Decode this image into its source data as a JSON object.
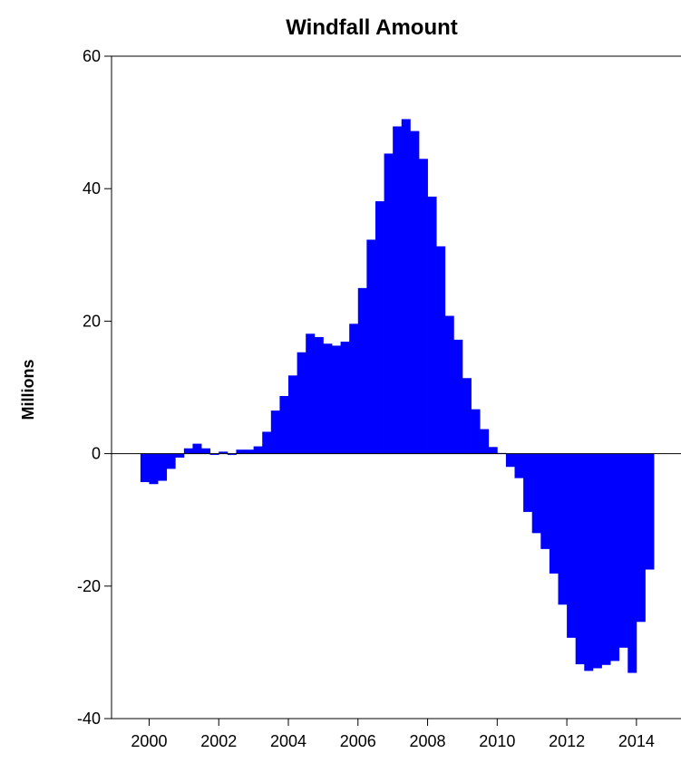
{
  "chart_data": {
    "type": "bar",
    "title": "Windfall Amount",
    "y_label": "Millions",
    "x": [
      1999.875,
      2000.125,
      2000.375,
      2000.625,
      2000.875,
      2001.125,
      2001.375,
      2001.625,
      2001.875,
      2002.125,
      2002.375,
      2002.625,
      2002.875,
      2003.125,
      2003.375,
      2003.625,
      2003.875,
      2004.125,
      2004.375,
      2004.625,
      2004.875,
      2005.125,
      2005.375,
      2005.625,
      2005.875,
      2006.125,
      2006.375,
      2006.625,
      2006.875,
      2007.125,
      2007.375,
      2007.625,
      2007.875,
      2008.125,
      2008.375,
      2008.625,
      2008.875,
      2009.125,
      2009.375,
      2009.625,
      2009.875,
      2010.125,
      2010.375,
      2010.625,
      2010.875,
      2011.125,
      2011.375,
      2011.625,
      2011.875,
      2012.125,
      2012.375,
      2012.625,
      2012.875,
      2013.125,
      2013.375,
      2013.625,
      2013.875,
      2014.125,
      2014.375
    ],
    "values": [
      -4.3,
      -4.6,
      -4.1,
      -2.3,
      -0.6,
      0.8,
      1.5,
      0.8,
      -0.2,
      0.3,
      -0.2,
      0.6,
      0.6,
      1.1,
      3.3,
      6.5,
      8.7,
      11.8,
      15.3,
      18.1,
      17.6,
      16.6,
      16.3,
      16.9,
      19.6,
      25.0,
      32.3,
      38.1,
      45.3,
      49.4,
      50.5,
      48.7,
      44.5,
      38.8,
      31.3,
      20.8,
      17.2,
      11.4,
      6.7,
      3.7,
      1.0,
      0.1,
      -2.0,
      -3.7,
      -8.8,
      -12.0,
      -14.4,
      -18.1,
      -22.8,
      -27.8,
      -31.8,
      -32.8,
      -32.4,
      -31.9,
      -31.3,
      -29.3,
      -33.1,
      -25.4,
      -17.5
    ],
    "color": "#0000ff",
    "xlim": [
      1998.92,
      2015.28
    ],
    "xticks": [
      2000,
      2002,
      2004,
      2006,
      2008,
      2010,
      2012,
      2014
    ],
    "ylim": [
      -40,
      60
    ],
    "yticks": [
      -40,
      -20,
      0,
      20,
      40,
      60
    ]
  }
}
